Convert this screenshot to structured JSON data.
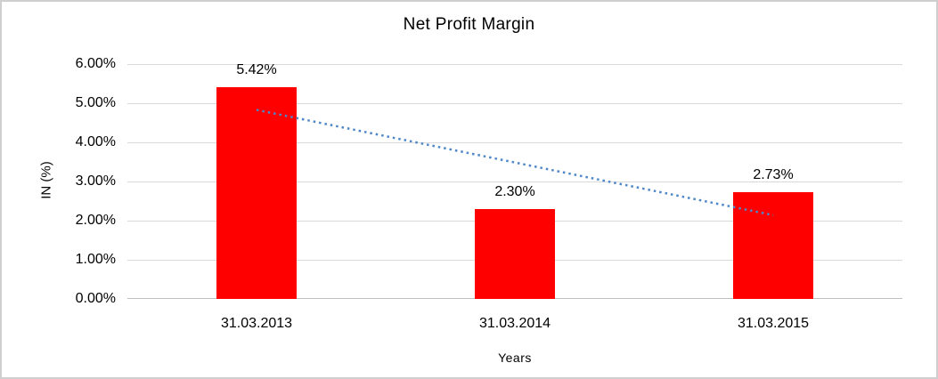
{
  "chart_data": {
    "type": "bar",
    "title": "Net Profit Margin",
    "xlabel": "Years",
    "ylabel": "IN (%)",
    "categories": [
      "31.03.2013",
      "31.03.2014",
      "31.03.2015"
    ],
    "values": [
      5.42,
      2.3,
      2.73
    ],
    "data_labels": [
      "5.42%",
      "2.30%",
      "2.73%"
    ],
    "ylim": [
      0,
      6
    ],
    "ytick_step": 1,
    "ytick_labels": [
      "0.00%",
      "1.00%",
      "2.00%",
      "3.00%",
      "4.00%",
      "5.00%",
      "6.00%"
    ],
    "grid": true,
    "legend": "none",
    "bar_color": "#ff0000",
    "gridline_color": "#d9d9d9",
    "axis_line_color": "#bfbfbf",
    "trendline": {
      "style": "dotted",
      "color": "#4e87c8",
      "start_value": 4.83,
      "end_value": 2.14
    }
  }
}
